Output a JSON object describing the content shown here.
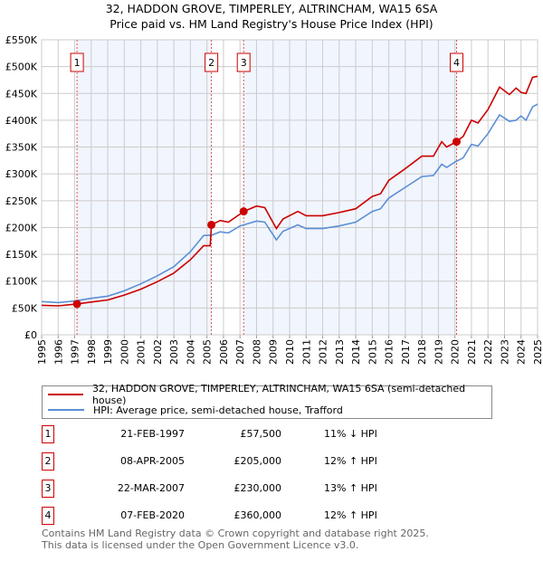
{
  "title_line1": "32, HADDON GROVE, TIMPERLEY, ALTRINCHAM, WA15 6SA",
  "title_line2": "Price paid vs. HM Land Registry's House Price Index (HPI)",
  "chart_data": {
    "type": "line",
    "title": "32, HADDON GROVE, TIMPERLEY, ALTRINCHAM, WA15 6SA — Price paid vs. HM Land Registry's House Price Index (HPI)",
    "xlabel": "",
    "ylabel": "",
    "xlim": [
      1995,
      2025
    ],
    "ylim": [
      0,
      550000
    ],
    "x_ticks": [
      "1995",
      "1996",
      "1997",
      "1998",
      "1999",
      "2000",
      "2001",
      "2002",
      "2003",
      "2004",
      "2005",
      "2006",
      "2007",
      "2008",
      "2009",
      "2010",
      "2011",
      "2012",
      "2013",
      "2014",
      "2015",
      "2016",
      "2017",
      "2018",
      "2019",
      "2020",
      "2021",
      "2022",
      "2023",
      "2024",
      "2025"
    ],
    "y_ticks": [
      {
        "value": 0,
        "label": "£0"
      },
      {
        "value": 50000,
        "label": "£50K"
      },
      {
        "value": 100000,
        "label": "£100K"
      },
      {
        "value": 150000,
        "label": "£150K"
      },
      {
        "value": 200000,
        "label": "£200K"
      },
      {
        "value": 250000,
        "label": "£250K"
      },
      {
        "value": 300000,
        "label": "£300K"
      },
      {
        "value": 350000,
        "label": "£350K"
      },
      {
        "value": 400000,
        "label": "£400K"
      },
      {
        "value": 450000,
        "label": "£450K"
      },
      {
        "value": 500000,
        "label": "£500K"
      },
      {
        "value": 550000,
        "label": "£550K"
      }
    ],
    "grid": true,
    "shaded_ranges": [
      [
        1997.14,
        2005.27
      ],
      [
        2007.22,
        2020.1
      ]
    ],
    "series": [
      {
        "name": "32, HADDON GROVE, TIMPERLEY, ALTRINCHAM, WA15 6SA (semi-detached house)",
        "color": "#cc0000",
        "x": [
          1995,
          1996,
          1997.14,
          1998,
          1999,
          2000,
          2001,
          2002,
          2003,
          2004,
          2004.8,
          2005.2,
          2005.27,
          2005.8,
          2006.3,
          2007,
          2007.22,
          2008,
          2008.5,
          2009.2,
          2009.6,
          2010.5,
          2011,
          2012,
          2013,
          2014,
          2015,
          2015.5,
          2016,
          2017,
          2018,
          2018.7,
          2019.2,
          2019.5,
          2020.1,
          2020.5,
          2021,
          2021.4,
          2022,
          2022.7,
          2023.3,
          2023.7,
          2024,
          2024.3,
          2024.7,
          2025
        ],
        "y": [
          55000,
          54000,
          57500,
          61000,
          65000,
          74000,
          85000,
          99000,
          115000,
          140000,
          166000,
          166000,
          205000,
          213000,
          210000,
          225000,
          230000,
          240000,
          237000,
          198000,
          216000,
          230000,
          222000,
          222000,
          228000,
          235000,
          258000,
          263000,
          288000,
          310000,
          333000,
          333000,
          360000,
          350000,
          360000,
          370000,
          400000,
          395000,
          420000,
          462000,
          448000,
          460000,
          452000,
          450000,
          480000,
          482000
        ]
      },
      {
        "name": "HPI: Average price, semi-detached house, Trafford",
        "color": "#5b8fd6",
        "x": [
          1995,
          1996,
          1997,
          1998,
          1999,
          2000,
          2001,
          2002,
          2003,
          2004,
          2004.8,
          2005.3,
          2005.8,
          2006.3,
          2007,
          2008,
          2008.5,
          2009.2,
          2009.6,
          2010.5,
          2011,
          2012,
          2013,
          2014,
          2015,
          2015.5,
          2016,
          2017,
          2018,
          2018.7,
          2019.2,
          2019.5,
          2020,
          2020.5,
          2021,
          2021.4,
          2022,
          2022.7,
          2023.3,
          2023.7,
          2024,
          2024.3,
          2024.7,
          2025
        ],
        "y": [
          62000,
          60000,
          63000,
          68000,
          72000,
          82000,
          95000,
          110000,
          127000,
          155000,
          185000,
          186000,
          192000,
          190000,
          203000,
          212000,
          210000,
          177000,
          193000,
          205000,
          198000,
          198000,
          203000,
          210000,
          230000,
          235000,
          255000,
          275000,
          295000,
          297000,
          318000,
          312000,
          322000,
          330000,
          355000,
          352000,
          375000,
          410000,
          398000,
          400000,
          408000,
          400000,
          425000,
          430000
        ]
      }
    ],
    "sales": [
      {
        "id": "1",
        "x": 1997.14,
        "y": 57500
      },
      {
        "id": "2",
        "x": 2005.27,
        "y": 205000
      },
      {
        "id": "3",
        "x": 2007.22,
        "y": 230000
      },
      {
        "id": "4",
        "x": 2020.1,
        "y": 360000
      }
    ],
    "legend_position": "below"
  },
  "legend": [
    {
      "label": "32, HADDON GROVE, TIMPERLEY, ALTRINCHAM, WA15 6SA (semi-detached house)",
      "color": "#cc0000"
    },
    {
      "label": "HPI: Average price, semi-detached house, Trafford",
      "color": "#5b8fd6"
    }
  ],
  "transactions": [
    {
      "id": "1",
      "date": "21-FEB-1997",
      "price": "£57,500",
      "hpi": "11% ↓ HPI"
    },
    {
      "id": "2",
      "date": "08-APR-2005",
      "price": "£205,000",
      "hpi": "12% ↑ HPI"
    },
    {
      "id": "3",
      "date": "22-MAR-2007",
      "price": "£230,000",
      "hpi": "13% ↑ HPI"
    },
    {
      "id": "4",
      "date": "07-FEB-2020",
      "price": "£360,000",
      "hpi": "12% ↑ HPI"
    }
  ],
  "footer_line1": "Contains HM Land Registry data © Crown copyright and database right 2025.",
  "footer_line2": "This data is licensed under the Open Government Licence v3.0."
}
